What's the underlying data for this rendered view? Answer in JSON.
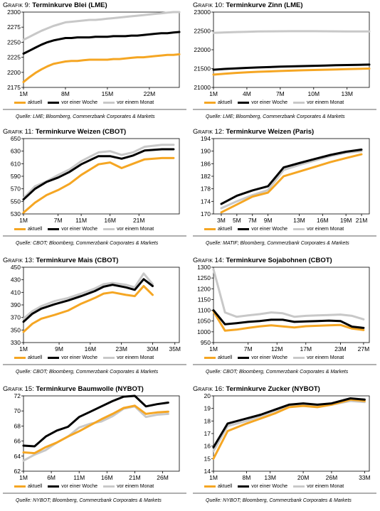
{
  "legend": {
    "s1": "aktuell",
    "s2": "vor einer Woche",
    "s3": "vor einem Monat"
  },
  "colors": {
    "s1": "#F5A623",
    "s2": "#000000",
    "s3": "#C8C8C8"
  },
  "chart_data": [
    {
      "type": "line",
      "label": "Grafik 9:",
      "title": "Terminkurve Blei (LME)",
      "yticks": [
        2175,
        2200,
        2225,
        2250,
        2275,
        2300
      ],
      "ylim": [
        2175,
        2300
      ],
      "xticks": [
        {
          "x": 1,
          "label": "1M"
        },
        {
          "x": 8,
          "label": "8M"
        },
        {
          "x": 15,
          "label": "15M"
        },
        {
          "x": 22,
          "label": "22M"
        }
      ],
      "xlim": [
        1,
        27
      ],
      "x": [
        1,
        2,
        3,
        4,
        5,
        6,
        7,
        8,
        9,
        10,
        11,
        12,
        13,
        14,
        15,
        16,
        17,
        18,
        19,
        20,
        21,
        22,
        23,
        24,
        25,
        26,
        27
      ],
      "series": [
        {
          "name": "aktuell",
          "values": [
            2184,
            2192,
            2199,
            2205,
            2210,
            2214,
            2216,
            2218,
            2219,
            2219,
            2220,
            2221,
            2221,
            2221,
            2221,
            2222,
            2222,
            2223,
            2224,
            2225,
            2225,
            2226,
            2227,
            2228,
            2229,
            2229,
            2230
          ]
        },
        {
          "name": "vor einer Woche",
          "values": [
            2231,
            2236,
            2241,
            2246,
            2250,
            2253,
            2255,
            2257,
            2257,
            2258,
            2258,
            2258,
            2259,
            2259,
            2259,
            2260,
            2260,
            2260,
            2261,
            2261,
            2262,
            2263,
            2264,
            2265,
            2265,
            2266,
            2267
          ]
        },
        {
          "name": "vor einem Monat",
          "values": [
            2254,
            2259,
            2264,
            2269,
            2273,
            2277,
            2280,
            2283,
            2284,
            2285,
            2286,
            2287,
            2287,
            2288,
            2289,
            2290,
            2291,
            2292,
            2293,
            2294,
            2295,
            2296,
            2297,
            2298,
            2299,
            2300,
            2300
          ]
        }
      ],
      "source": "Quelle: LME; Bloomberg, Commerzbank Corporates & Markets"
    },
    {
      "type": "line",
      "label": "Grafik 10:",
      "title": "Terminkurve Zinn (LME)",
      "yticks": [
        21000,
        21500,
        22000,
        22500,
        23000
      ],
      "ylim": [
        21000,
        23000
      ],
      "xticks": [
        {
          "x": 1,
          "label": "1M"
        },
        {
          "x": 4,
          "label": "4M"
        },
        {
          "x": 7,
          "label": "7M"
        },
        {
          "x": 10,
          "label": "10M"
        },
        {
          "x": 13,
          "label": "13M"
        }
      ],
      "xlim": [
        1,
        15
      ],
      "x": [
        1,
        2,
        3,
        4,
        5,
        6,
        7,
        8,
        9,
        10,
        11,
        12,
        13,
        14,
        15
      ],
      "series": [
        {
          "name": "aktuell",
          "values": [
            21340,
            21365,
            21385,
            21400,
            21415,
            21425,
            21435,
            21445,
            21455,
            21462,
            21470,
            21478,
            21485,
            21492,
            21500
          ]
        },
        {
          "name": "vor einer Woche",
          "values": [
            21470,
            21490,
            21505,
            21518,
            21530,
            21540,
            21550,
            21558,
            21566,
            21574,
            21580,
            21588,
            21595,
            21600,
            21605
          ]
        },
        {
          "name": "vor einem Monat",
          "values": [
            22450,
            22460,
            22470,
            22478,
            22484,
            22488,
            22490,
            22492,
            22493,
            22493,
            22490,
            22488,
            22486,
            22485,
            22485
          ]
        }
      ],
      "source": "Quelle: LME; Bloomberg, Commerzbank Corporates & Markets"
    },
    {
      "type": "line",
      "label": "Grafik 11:",
      "title": "Terminkurve Weizen (CBOT)",
      "yticks": [
        530,
        550,
        570,
        590,
        610,
        630,
        650
      ],
      "ylim": [
        530,
        650
      ],
      "xticks": [
        {
          "x": 1,
          "label": "1M"
        },
        {
          "x": 7,
          "label": "7M"
        },
        {
          "x": 11,
          "label": "11M"
        },
        {
          "x": 16,
          "label": "16M"
        },
        {
          "x": 21,
          "label": "21M"
        }
      ],
      "xlim": [
        1,
        28
      ],
      "x": [
        1,
        3,
        5,
        7,
        9,
        11,
        14,
        16,
        18,
        20,
        22,
        25,
        27
      ],
      "series": [
        {
          "name": "aktuell",
          "values": [
            532,
            548,
            560,
            568,
            578,
            592,
            609,
            612,
            603,
            610,
            617,
            619,
            619
          ]
        },
        {
          "name": "vor einer Woche",
          "values": [
            553,
            570,
            581,
            588,
            597,
            609,
            622,
            622,
            618,
            623,
            631,
            633,
            633
          ]
        },
        {
          "name": "vor einem Monat",
          "values": [
            555,
            574,
            582,
            592,
            601,
            614,
            628,
            630,
            624,
            628,
            637,
            640,
            640
          ]
        }
      ],
      "source": "Quelle: CBOT; Bloomberg, Commerzbank Corporates & Markets"
    },
    {
      "type": "line",
      "label": "Grafik 12:",
      "title": "Terminkurve Weizen (Paris)",
      "yticks": [
        170,
        174,
        178,
        182,
        186,
        190,
        194
      ],
      "ylim": [
        170,
        194
      ],
      "xticks": [
        {
          "x": 3,
          "label": "3M"
        },
        {
          "x": 5,
          "label": "5M"
        },
        {
          "x": 7,
          "label": "7M"
        },
        {
          "x": 9,
          "label": "9M"
        },
        {
          "x": 13,
          "label": "13M"
        },
        {
          "x": 16,
          "label": "16M"
        },
        {
          "x": 19,
          "label": "19M"
        },
        {
          "x": 21,
          "label": "21M"
        }
      ],
      "xlim": [
        2,
        22
      ],
      "x": [
        3,
        5,
        7,
        9,
        11,
        13,
        15,
        17,
        19,
        21
      ],
      "series": [
        {
          "name": "aktuell",
          "values": [
            170.5,
            173.0,
            175.5,
            176.8,
            182.0,
            183.5,
            185.0,
            186.5,
            187.8,
            189.0
          ]
        },
        {
          "name": "vor einer Woche",
          "values": [
            173.2,
            175.8,
            177.5,
            178.8,
            184.8,
            186.2,
            187.5,
            188.8,
            189.8,
            190.5
          ]
        },
        {
          "name": "vor einem Monat",
          "values": [
            171.8,
            174.0,
            176.0,
            177.6,
            184.0,
            185.6,
            187.0,
            188.4,
            189.5,
            190.0
          ]
        }
      ],
      "source": "Quelle: MATIF; Bloomberg, Commerzbank Corporates & Markets"
    },
    {
      "type": "line",
      "label": "Grafik 13:",
      "title": "Terminkurve Mais (CBOT)",
      "yticks": [
        330,
        350,
        370,
        390,
        410,
        430,
        450
      ],
      "ylim": [
        330,
        450
      ],
      "xticks": [
        {
          "x": 1,
          "label": "1M"
        },
        {
          "x": 9,
          "label": "9M"
        },
        {
          "x": 16,
          "label": "16M"
        },
        {
          "x": 23,
          "label": "23M"
        },
        {
          "x": 30,
          "label": "30M"
        },
        {
          "x": 35,
          "label": "35M"
        }
      ],
      "xlim": [
        1,
        36
      ],
      "x": [
        1,
        3,
        5,
        8,
        11,
        14,
        17,
        19,
        21,
        24,
        26,
        28,
        30
      ],
      "series": [
        {
          "name": "aktuell",
          "values": [
            347,
            360,
            368,
            374,
            381,
            392,
            401,
            408,
            410,
            406,
            404,
            420,
            406
          ]
        },
        {
          "name": "vor einer Woche",
          "values": [
            363,
            376,
            384,
            391,
            397,
            404,
            412,
            419,
            422,
            418,
            414,
            431,
            420
          ]
        },
        {
          "name": "vor einem Monat",
          "values": [
            368,
            380,
            388,
            396,
            401,
            408,
            416,
            423,
            425,
            422,
            418,
            440,
            423
          ]
        }
      ],
      "source": "Quelle: CBOT; Bloomberg, Commerzbank Corporates & Markets"
    },
    {
      "type": "line",
      "label": "Grafik 14:",
      "title": "Terminkurve Sojabohnen (CBOT)",
      "yticks": [
        950,
        1000,
        1050,
        1100,
        1150,
        1200,
        1250,
        1300
      ],
      "ylim": [
        950,
        1300
      ],
      "xticks": [
        {
          "x": 1,
          "label": "1M"
        },
        {
          "x": 7,
          "label": "7M"
        },
        {
          "x": 12,
          "label": "12M"
        },
        {
          "x": 17,
          "label": "17M"
        },
        {
          "x": 23,
          "label": "23M"
        },
        {
          "x": 27,
          "label": "27M"
        }
      ],
      "xlim": [
        1,
        28
      ],
      "x": [
        1,
        3,
        5,
        7,
        9,
        11,
        13,
        15,
        17,
        19,
        21,
        23,
        25,
        27
      ],
      "series": [
        {
          "name": "aktuell",
          "values": [
            1095,
            1005,
            1010,
            1018,
            1025,
            1030,
            1025,
            1020,
            1026,
            1028,
            1030,
            1032,
            1015,
            1008
          ]
        },
        {
          "name": "vor einer Woche",
          "values": [
            1100,
            1035,
            1040,
            1046,
            1050,
            1056,
            1056,
            1046,
            1048,
            1050,
            1052,
            1050,
            1024,
            1018
          ]
        },
        {
          "name": "vor einem Monat",
          "values": [
            1290,
            1090,
            1070,
            1076,
            1082,
            1090,
            1086,
            1070,
            1074,
            1076,
            1078,
            1080,
            1074,
            1058
          ]
        }
      ],
      "source": "Quelle: CBOT; Bloomberg, Commerzbank Corporates & Markets"
    },
    {
      "type": "line",
      "label": "Grafik 15:",
      "title": "Terminkurve Baumwolle (NYBOT)",
      "yticks": [
        62,
        64,
        66,
        68,
        70,
        72
      ],
      "ylim": [
        62,
        72
      ],
      "xticks": [
        {
          "x": 1,
          "label": "1M"
        },
        {
          "x": 6,
          "label": "6M"
        },
        {
          "x": 11,
          "label": "11M"
        },
        {
          "x": 16,
          "label": "16M"
        },
        {
          "x": 21,
          "label": "21M"
        },
        {
          "x": 26,
          "label": "26M"
        }
      ],
      "xlim": [
        1,
        29
      ],
      "x": [
        1,
        3,
        5,
        7,
        9,
        11,
        13,
        15,
        17,
        19,
        21,
        23,
        25,
        27
      ],
      "series": [
        {
          "name": "aktuell",
          "values": [
            64.5,
            64.4,
            65.2,
            65.8,
            66.6,
            67.3,
            68.1,
            68.9,
            69.6,
            70.4,
            70.7,
            69.6,
            69.8,
            69.9
          ]
        },
        {
          "name": "vor einer Woche",
          "values": [
            65.4,
            65.3,
            66.6,
            67.4,
            67.9,
            69.2,
            69.9,
            70.6,
            71.3,
            71.9,
            72.0,
            70.6,
            70.9,
            71.1
          ]
        },
        {
          "name": "vor einem Monat",
          "values": [
            63.4,
            64.2,
            64.8,
            65.8,
            66.6,
            67.8,
            68.3,
            68.6,
            69.3,
            70.3,
            70.6,
            69.2,
            69.5,
            69.6
          ]
        }
      ],
      "source": "Quelle: NYBOT; Bloomberg, Commerzbank Corporates & Markets"
    },
    {
      "type": "line",
      "label": "Grafik 16:",
      "title": "Terminkurve Zucker (NYBOT)",
      "yticks": [
        14,
        15,
        16,
        17,
        18,
        19,
        20
      ],
      "ylim": [
        14,
        20
      ],
      "xticks": [
        {
          "x": 1,
          "label": "1M"
        },
        {
          "x": 8,
          "label": "8M"
        },
        {
          "x": 13,
          "label": "13M"
        },
        {
          "x": 20,
          "label": "20M"
        },
        {
          "x": 26,
          "label": "26M"
        },
        {
          "x": 33,
          "label": "33M"
        }
      ],
      "xlim": [
        1,
        34
      ],
      "x": [
        1,
        4,
        8,
        11,
        14,
        17,
        20,
        23,
        26,
        30,
        33
      ],
      "series": [
        {
          "name": "aktuell",
          "values": [
            15.0,
            17.2,
            17.8,
            18.2,
            18.6,
            19.1,
            19.2,
            19.1,
            19.3,
            19.7,
            19.6
          ]
        },
        {
          "name": "vor einer Woche",
          "values": [
            15.9,
            17.8,
            18.2,
            18.5,
            18.9,
            19.3,
            19.4,
            19.3,
            19.4,
            19.8,
            19.7
          ]
        },
        {
          "name": "vor einem Monat",
          "values": [
            15.6,
            17.6,
            18.0,
            18.4,
            18.8,
            19.2,
            19.3,
            19.2,
            19.3,
            19.6,
            19.5
          ]
        }
      ],
      "source": "Quelle: NYBOT; Bloomberg, Commerzbank Corporates & Markets"
    }
  ]
}
